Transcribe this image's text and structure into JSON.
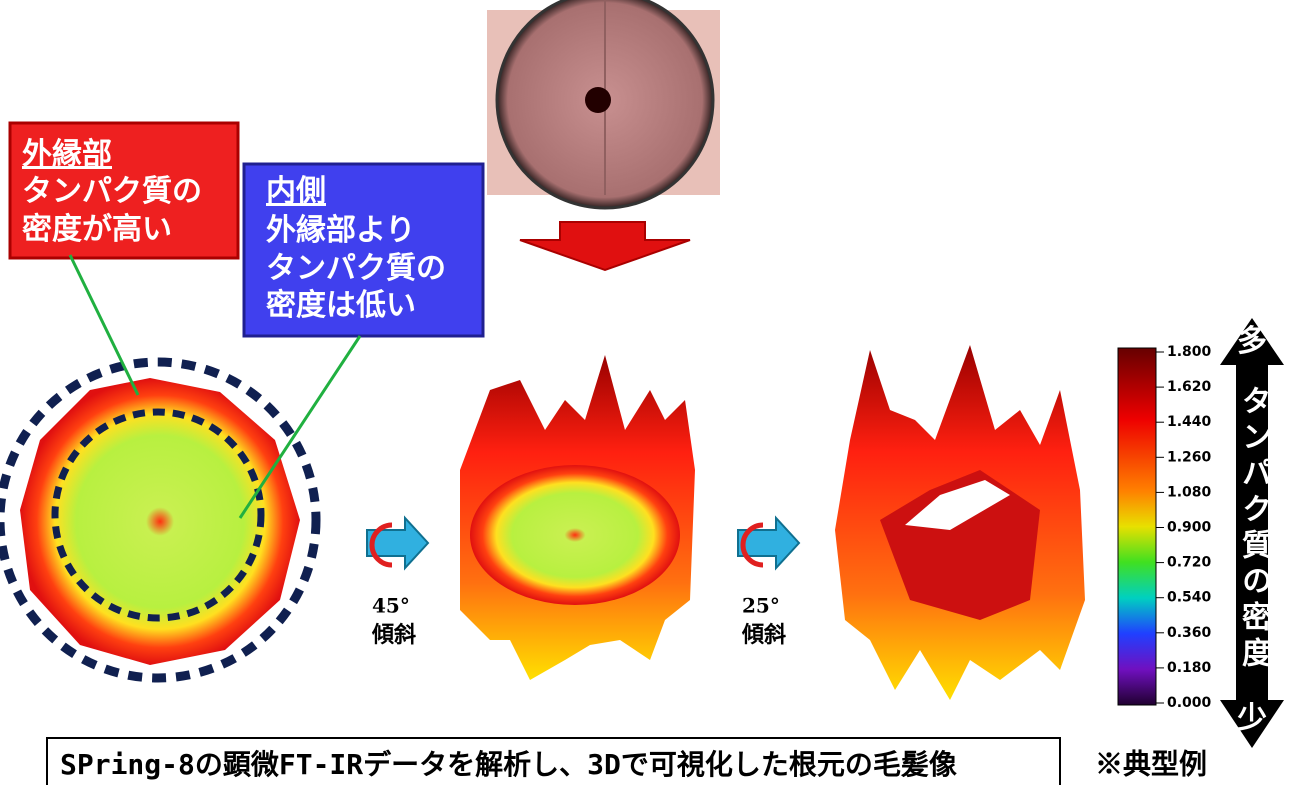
{
  "callouts": [
    {
      "title": "外縁部",
      "lines": [
        "タンパク質の",
        "密度が高い"
      ]
    },
    {
      "title": "内側",
      "lines": [
        "外縁部より",
        "タンパク質の",
        "密度は低い"
      ]
    }
  ],
  "rotations": [
    {
      "angle": "45°",
      "label": "傾斜"
    },
    {
      "angle": "25°",
      "label": "傾斜"
    }
  ],
  "colorbar": {
    "ticks": [
      "1.800",
      "1.620",
      "1.440",
      "1.260",
      "1.080",
      "0.900",
      "0.720",
      "0.540",
      "0.360",
      "0.180",
      "0.000"
    ],
    "top": "多",
    "label": "タンパク質の密度",
    "bottom": "少"
  },
  "caption": "SPring-8の顕微FT-IRデータを解析し、3Dで可視化した根元の毛髪像",
  "note": "※典型例"
}
